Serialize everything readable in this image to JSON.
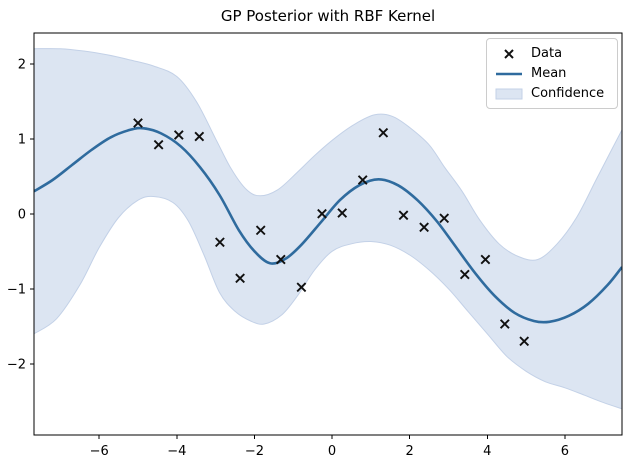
{
  "chart_data": {
    "type": "line",
    "title": "GP Posterior with RBF Kernel",
    "xlabel": "",
    "ylabel": "",
    "xlim": [
      -7.68,
      7.47
    ],
    "ylim": [
      -2.95,
      2.41
    ],
    "grid": false,
    "xticks": {
      "values": [
        -6,
        -4,
        -2,
        0,
        2,
        4,
        6
      ],
      "labels": [
        "−6",
        "−4",
        "−2",
        "0",
        "2",
        "4",
        "6"
      ]
    },
    "yticks": {
      "values": [
        2,
        1,
        0,
        -1,
        -2
      ],
      "labels": [
        "2",
        "1",
        "0",
        "−1",
        "−2"
      ]
    },
    "legend": {
      "position": "upper right",
      "entries": [
        {
          "label": "Data",
          "handle": "x-marker"
        },
        {
          "label": "Mean",
          "handle": "line"
        },
        {
          "label": "Confidence",
          "handle": "patch"
        }
      ]
    },
    "colors": {
      "mean": "#2f6b9e",
      "band": "#dce5f2",
      "band_edge": "#c3d1e7",
      "marker": "#111111",
      "axis": "#000000"
    },
    "series": [
      {
        "name": "Data",
        "type": "scatter",
        "marker": "x",
        "points": [
          [
            -5.0,
            1.21
          ],
          [
            -4.47,
            0.92
          ],
          [
            -3.95,
            1.05
          ],
          [
            -3.42,
            1.03
          ],
          [
            -2.89,
            -0.38
          ],
          [
            -2.37,
            -0.86
          ],
          [
            -1.84,
            -0.22
          ],
          [
            -1.32,
            -0.61
          ],
          [
            -0.79,
            -0.98
          ],
          [
            -0.26,
            0.0
          ],
          [
            0.26,
            0.01
          ],
          [
            0.79,
            0.45
          ],
          [
            1.32,
            1.08
          ],
          [
            1.84,
            -0.02
          ],
          [
            2.37,
            -0.18
          ],
          [
            2.89,
            -0.06
          ],
          [
            3.42,
            -0.81
          ],
          [
            3.95,
            -0.61
          ],
          [
            4.45,
            -1.47
          ],
          [
            4.95,
            -1.7
          ]
        ]
      },
      {
        "name": "Mean",
        "type": "line",
        "points": [
          [
            -7.68,
            0.3
          ],
          [
            -7.2,
            0.45
          ],
          [
            -6.7,
            0.65
          ],
          [
            -6.2,
            0.85
          ],
          [
            -5.7,
            1.02
          ],
          [
            -5.2,
            1.12
          ],
          [
            -4.85,
            1.14
          ],
          [
            -4.4,
            1.07
          ],
          [
            -3.9,
            0.9
          ],
          [
            -3.4,
            0.62
          ],
          [
            -2.9,
            0.25
          ],
          [
            -2.4,
            -0.22
          ],
          [
            -2.0,
            -0.5
          ],
          [
            -1.6,
            -0.66
          ],
          [
            -1.2,
            -0.6
          ],
          [
            -0.8,
            -0.42
          ],
          [
            -0.3,
            -0.12
          ],
          [
            0.2,
            0.18
          ],
          [
            0.7,
            0.38
          ],
          [
            1.2,
            0.46
          ],
          [
            1.7,
            0.38
          ],
          [
            2.2,
            0.18
          ],
          [
            2.7,
            -0.1
          ],
          [
            3.2,
            -0.45
          ],
          [
            3.7,
            -0.8
          ],
          [
            4.2,
            -1.1
          ],
          [
            4.7,
            -1.32
          ],
          [
            5.2,
            -1.43
          ],
          [
            5.6,
            -1.44
          ],
          [
            6.1,
            -1.36
          ],
          [
            6.6,
            -1.2
          ],
          [
            7.1,
            -0.95
          ],
          [
            7.47,
            -0.71
          ]
        ]
      },
      {
        "name": "Confidence",
        "type": "band",
        "top": [
          [
            -7.68,
            2.2
          ],
          [
            -7.0,
            2.2
          ],
          [
            -6.4,
            2.17
          ],
          [
            -5.8,
            2.12
          ],
          [
            -5.2,
            2.05
          ],
          [
            -4.6,
            1.97
          ],
          [
            -4.0,
            1.83
          ],
          [
            -3.5,
            1.5
          ],
          [
            -3.0,
            1.0
          ],
          [
            -2.6,
            0.6
          ],
          [
            -2.2,
            0.32
          ],
          [
            -1.85,
            0.24
          ],
          [
            -1.4,
            0.32
          ],
          [
            -0.9,
            0.55
          ],
          [
            -0.4,
            0.8
          ],
          [
            0.1,
            1.02
          ],
          [
            0.6,
            1.2
          ],
          [
            1.1,
            1.32
          ],
          [
            1.55,
            1.3
          ],
          [
            2.0,
            1.15
          ],
          [
            2.5,
            0.92
          ],
          [
            2.9,
            0.62
          ],
          [
            3.35,
            0.3
          ],
          [
            3.8,
            -0.08
          ],
          [
            4.3,
            -0.4
          ],
          [
            4.8,
            -0.57
          ],
          [
            5.3,
            -0.61
          ],
          [
            5.8,
            -0.4
          ],
          [
            6.3,
            -0.05
          ],
          [
            6.8,
            0.45
          ],
          [
            7.2,
            0.85
          ],
          [
            7.47,
            1.12
          ]
        ],
        "bottom": [
          [
            -7.68,
            -1.6
          ],
          [
            -7.1,
            -1.4
          ],
          [
            -6.5,
            -0.95
          ],
          [
            -6.0,
            -0.45
          ],
          [
            -5.5,
            -0.05
          ],
          [
            -5.0,
            0.18
          ],
          [
            -4.6,
            0.23
          ],
          [
            -4.1,
            0.15
          ],
          [
            -3.7,
            -0.1
          ],
          [
            -3.3,
            -0.55
          ],
          [
            -2.9,
            -1.05
          ],
          [
            -2.5,
            -1.3
          ],
          [
            -2.1,
            -1.43
          ],
          [
            -1.75,
            -1.47
          ],
          [
            -1.3,
            -1.35
          ],
          [
            -0.9,
            -1.1
          ],
          [
            -0.45,
            -0.75
          ],
          [
            0.0,
            -0.5
          ],
          [
            0.5,
            -0.4
          ],
          [
            1.0,
            -0.37
          ],
          [
            1.5,
            -0.42
          ],
          [
            2.0,
            -0.55
          ],
          [
            2.5,
            -0.75
          ],
          [
            3.0,
            -1.0
          ],
          [
            3.5,
            -1.3
          ],
          [
            4.0,
            -1.6
          ],
          [
            4.5,
            -1.9
          ],
          [
            5.0,
            -2.1
          ],
          [
            5.5,
            -2.24
          ],
          [
            6.0,
            -2.32
          ],
          [
            6.5,
            -2.42
          ],
          [
            7.0,
            -2.52
          ],
          [
            7.47,
            -2.6
          ]
        ]
      }
    ]
  }
}
